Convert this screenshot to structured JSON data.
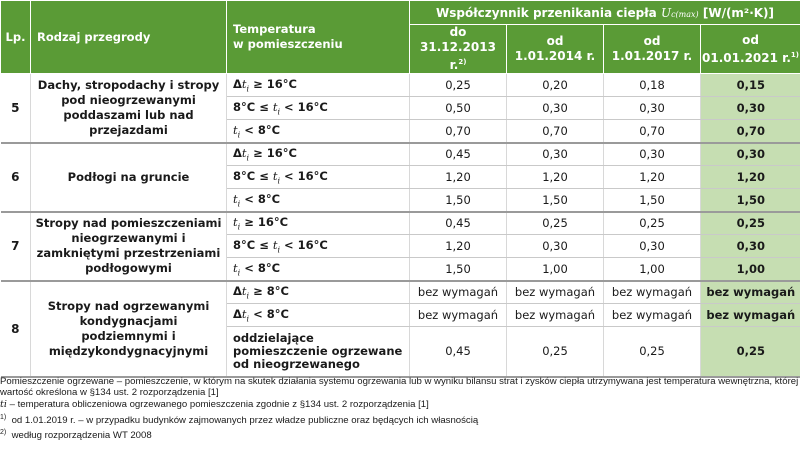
{
  "header": {
    "lp": "Lp.",
    "name": "Rodzaj przegrody",
    "temp_line1": "Temperatura",
    "temp_line2": "w pomieszczeniu",
    "coef_prefix": "Współczynnik przenikania ciepła",
    "coef_symbol": "U",
    "coef_sub": "c(max)",
    "coef_unit": "[W/(m²·K)]",
    "dates": [
      {
        "line1": "do",
        "line2": "31.12.2013 r.",
        "note": "2)"
      },
      {
        "line1": "od",
        "line2": "1.01.2014 r.",
        "note": ""
      },
      {
        "line1": "od",
        "line2": "1.01.2017 r.",
        "note": ""
      },
      {
        "line1": "od",
        "line2": "01.01.2021 r.",
        "note": "1)"
      }
    ]
  },
  "groups": [
    {
      "lp": "5",
      "name": "Dachy, stropodachy i stropy pod nieogrzewanymi poddaszami lub nad przejazdami",
      "rows": [
        {
          "temp": "Δti ≥ 16°C",
          "values": [
            "0,25",
            "0,20",
            "0,18",
            "0,15"
          ]
        },
        {
          "temp": "8°C ≤ ti < 16°C",
          "values": [
            "0,50",
            "0,30",
            "0,30",
            "0,30"
          ]
        },
        {
          "temp": "ti < 8°C",
          "values": [
            "0,70",
            "0,70",
            "0,70",
            "0,70"
          ]
        }
      ]
    },
    {
      "lp": "6",
      "name": "Podłogi na gruncie",
      "rows": [
        {
          "temp": "Δti ≥ 16°C",
          "values": [
            "0,45",
            "0,30",
            "0,30",
            "0,30"
          ]
        },
        {
          "temp": "8°C ≤ ti < 16°C",
          "values": [
            "1,20",
            "1,20",
            "1,20",
            "1,20"
          ]
        },
        {
          "temp": "ti < 8°C",
          "values": [
            "1,50",
            "1,50",
            "1,50",
            "1,50"
          ]
        }
      ]
    },
    {
      "lp": "7",
      "name": "Stropy nad pomieszczeniami nieogrzewanymi i zamkniętymi przestrzeniami podłogowymi",
      "rows": [
        {
          "temp": "ti ≥ 16°C",
          "values": [
            "0,45",
            "0,25",
            "0,25",
            "0,25"
          ]
        },
        {
          "temp": "8°C ≤ ti < 16°C",
          "values": [
            "1,20",
            "0,30",
            "0,30",
            "0,30"
          ]
        },
        {
          "temp": "ti < 8°C",
          "values": [
            "1,50",
            "1,00",
            "1,00",
            "1,00"
          ]
        }
      ]
    },
    {
      "lp": "8",
      "name": "Stropy nad ogrzewanymi kondygnacjami podziemnymi i międzykondygnacyjnymi",
      "rows": [
        {
          "temp": "Δti ≥ 8°C",
          "values": [
            "bez wymagań",
            "bez wymagań",
            "bez wymagań",
            "bez wymagań"
          ]
        },
        {
          "temp": "Δti < 8°C",
          "values": [
            "bez wymagań",
            "bez wymagań",
            "bez wymagań",
            "bez wymagań"
          ]
        },
        {
          "temp": "oddzielające pomieszczenie ogrzewane od nieogrzewanego",
          "values": [
            "0,45",
            "0,25",
            "0,25",
            "0,25"
          ]
        }
      ]
    }
  ],
  "footnotes": {
    "definition": "Pomieszczenie ogrzewane – pomieszczenie, w którym na skutek działania systemu ogrzewania lub w wyniku bilansu strat i zysków ciepła utrzymywana jest temperatura wewnętrzna, której wartość określona w §134 ust. 2 rozporządzenia [1]",
    "ti_symbol": "ti",
    "ti_text": " – temperatura obliczeniowa ogrzewanego pomieszczenia zgodnie z §134 ust. 2 rozporządzenia [1]",
    "note1_mark": "1)",
    "note1_text": "od 1.01.2019 r. – w przypadku budynków zajmowanych przez władze publiczne oraz będących ich własnością",
    "note2_mark": "2)",
    "note2_text": "według rozporządzenia WT 2008"
  },
  "colors": {
    "header_green": "#5a9b36",
    "highlight_green": "#c6deb2"
  }
}
